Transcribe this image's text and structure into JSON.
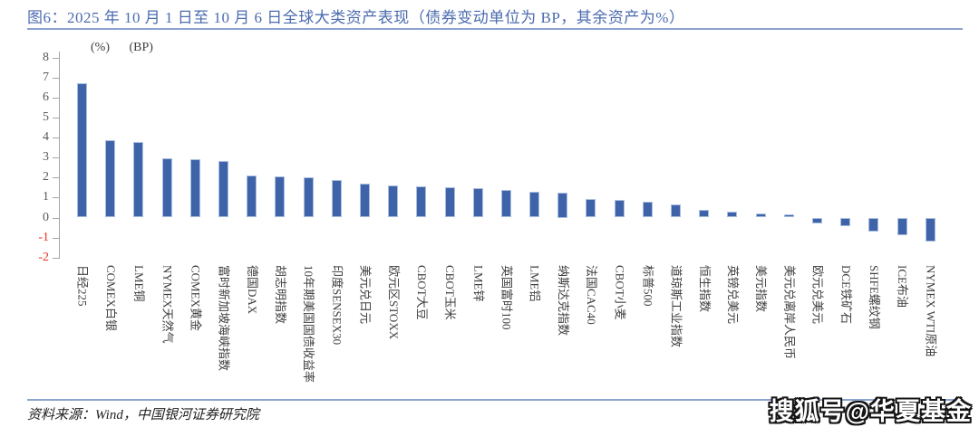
{
  "figure": {
    "title": "图6：2025 年 10 月 1 日至 10 月 6 日全球大类资产表现（债券变动单位为 BP，其余资产为%）",
    "source_note": "资料来源：Wind，中国银河证券研究院",
    "watermark": "搜狐号@华夏基金"
  },
  "chart_data": {
    "type": "bar",
    "title": "2025年10月1日至10月6日全球大类资产表现（债券变动单位为BP，其余资产为%）",
    "unit_labels": [
      "(%)",
      "(BP)"
    ],
    "categories": [
      "日经225",
      "COMEX白银",
      "LME铜",
      "NYMEX天然气",
      "COMEX黄金",
      "富时新加坡海峡指数",
      "德国DAX",
      "胡志明指数",
      "10年期美国国债收益率",
      "印度SENSEX30",
      "美元兑日元",
      "欧元区STOXX",
      "CBOT大豆",
      "CBOT玉米",
      "LME锌",
      "英国富时100",
      "LME铝",
      "纳斯达克指数",
      "法国CAC40",
      "CBOT小麦",
      "标普500",
      "道琼斯工业指数",
      "恒生指数",
      "英镑兑美元",
      "美元指数",
      "美元兑离岸人民币",
      "欧元兑美元",
      "DCE铁矿石",
      "SHFE螺纹钢",
      "ICE布油",
      "NYMEX WTI原油"
    ],
    "values": [
      6.7,
      3.85,
      3.8,
      2.95,
      2.9,
      2.85,
      2.1,
      2.05,
      2.0,
      1.9,
      1.7,
      1.6,
      1.55,
      1.5,
      1.45,
      1.4,
      1.3,
      1.25,
      0.95,
      0.9,
      0.8,
      0.65,
      0.4,
      0.3,
      0.2,
      0.15,
      -0.3,
      -0.45,
      -0.7,
      -0.9,
      -1.2
    ],
    "xlabel": "",
    "ylabel": "",
    "ylim": [
      -2,
      8
    ],
    "yticks": [
      8,
      7,
      6,
      5,
      4,
      3,
      2,
      1,
      0,
      -1,
      -2
    ],
    "grid": false,
    "legend": false,
    "bar_color": "#3e63a8",
    "bar_border_color": "#a9bedf",
    "negative_tick_color": "#ea3223",
    "accent_color": "#4b6bae"
  }
}
